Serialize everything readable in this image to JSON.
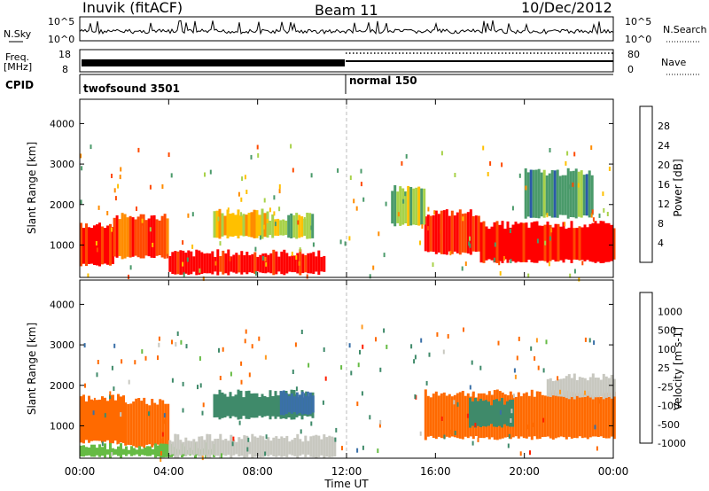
{
  "header": {
    "station": "Inuvik (fitACF)",
    "beam": "Beam 11",
    "date": "10/Dec/2012"
  },
  "top_panels": {
    "nsky_label": "N.Sky",
    "nsky_ticks": [
      "10^5",
      "10^0"
    ],
    "nsky_right_ticks": [
      "10^5",
      "10^0"
    ],
    "nsearch_label": "N.Search",
    "freq_label_line1": "Freq.",
    "freq_label_line2": "[MHz]",
    "freq_ticks": [
      "18",
      "8"
    ],
    "nave_ticks": [
      "80",
      "0"
    ],
    "nave_label": "Nave",
    "cpid_label": "CPID",
    "cpid_segments": [
      {
        "name": "twofsound 3501",
        "start_hour": 0,
        "end_hour": 12
      },
      {
        "name": "normal 150",
        "start_hour": 12,
        "end_hour": 24
      }
    ]
  },
  "power_colorbar": {
    "label": "Power [dB]",
    "ticks": [
      "28",
      "24",
      "20",
      "16",
      "12",
      "8",
      "4"
    ],
    "colors": [
      "#ff0000",
      "#ff4a00",
      "#ff8c00",
      "#ffc000",
      "#a8d24a",
      "#4a9a6a",
      "#2a5aa8",
      "#1010ff"
    ]
  },
  "velocity_colorbar": {
    "label": "Velocity [m s-1]",
    "ticks": [
      "1000",
      "500",
      "100",
      "25",
      "-25",
      "-100",
      "-500",
      "-1000"
    ],
    "colors": [
      "#2a3fbf",
      "#3a70a8",
      "#3f8a6a",
      "#66bb44",
      "#c8c8c0",
      "#ff9a20",
      "#ff6a00",
      "#ff2000"
    ]
  },
  "chart_data": [
    {
      "type": "heatmap",
      "title": "Power",
      "xlabel": "",
      "ylabel": "Slant Range [km]",
      "x_ticks": [
        "00:00",
        "04:00",
        "08:00",
        "12:00",
        "16:00",
        "20:00",
        "00:00"
      ],
      "y_ticks": [
        "4000",
        "3000",
        "2000",
        "1000"
      ],
      "ylim": [
        200,
        4600
      ],
      "xlim_hours": [
        0,
        24
      ],
      "regions": [
        {
          "start_hour": 0.0,
          "end_hour": 1.5,
          "range_min": 500,
          "range_max": 1500,
          "level": 26
        },
        {
          "start_hour": 1.5,
          "end_hour": 4.0,
          "range_min": 700,
          "range_max": 1700,
          "level": 22
        },
        {
          "start_hour": 4.0,
          "end_hour": 11.0,
          "range_min": 300,
          "range_max": 800,
          "level": 26
        },
        {
          "start_hour": 6.0,
          "end_hour": 8.5,
          "range_min": 1200,
          "range_max": 1800,
          "level": 14
        },
        {
          "start_hour": 8.5,
          "end_hour": 10.5,
          "range_min": 1200,
          "range_max": 1700,
          "level": 10
        },
        {
          "start_hour": 15.5,
          "end_hour": 18.0,
          "range_min": 800,
          "range_max": 1800,
          "level": 24
        },
        {
          "start_hour": 18.0,
          "end_hour": 24.0,
          "range_min": 600,
          "range_max": 1500,
          "level": 26
        },
        {
          "start_hour": 14.0,
          "end_hour": 15.5,
          "range_min": 1500,
          "range_max": 2400,
          "level": 10
        },
        {
          "start_hour": 20.0,
          "end_hour": 23.0,
          "range_min": 1700,
          "range_max": 2800,
          "level": 6
        }
      ]
    },
    {
      "type": "heatmap",
      "title": "Velocity",
      "xlabel": "Time UT",
      "ylabel": "Slant Range [km]",
      "x_ticks": [
        "00:00",
        "04:00",
        "08:00",
        "12:00",
        "16:00",
        "20:00",
        "00:00"
      ],
      "y_ticks": [
        "4000",
        "3000",
        "2000",
        "1000"
      ],
      "ylim": [
        200,
        4600
      ],
      "xlim_hours": [
        0,
        24
      ],
      "regions": [
        {
          "start_hour": 0.0,
          "end_hour": 2.0,
          "range_min": 600,
          "range_max": 1700,
          "level": -300
        },
        {
          "start_hour": 2.0,
          "end_hour": 4.0,
          "range_min": 500,
          "range_max": 1600,
          "level": -150
        },
        {
          "start_hour": 0.0,
          "end_hour": 6.0,
          "range_min": 250,
          "range_max": 500,
          "level": 60
        },
        {
          "start_hour": 4.0,
          "end_hour": 11.5,
          "range_min": 250,
          "range_max": 700,
          "level": 0
        },
        {
          "start_hour": 6.0,
          "end_hour": 10.5,
          "range_min": 1200,
          "range_max": 1800,
          "level": 120
        },
        {
          "start_hour": 9.0,
          "end_hour": 10.5,
          "range_min": 1300,
          "range_max": 1800,
          "level": 600
        },
        {
          "start_hour": 15.5,
          "end_hour": 24.0,
          "range_min": 700,
          "range_max": 1800,
          "level": -200
        },
        {
          "start_hour": 17.5,
          "end_hour": 19.5,
          "range_min": 1000,
          "range_max": 1600,
          "level": 150
        },
        {
          "start_hour": 21.0,
          "end_hour": 24.0,
          "range_min": 1700,
          "range_max": 2200,
          "level": 0
        }
      ]
    }
  ]
}
